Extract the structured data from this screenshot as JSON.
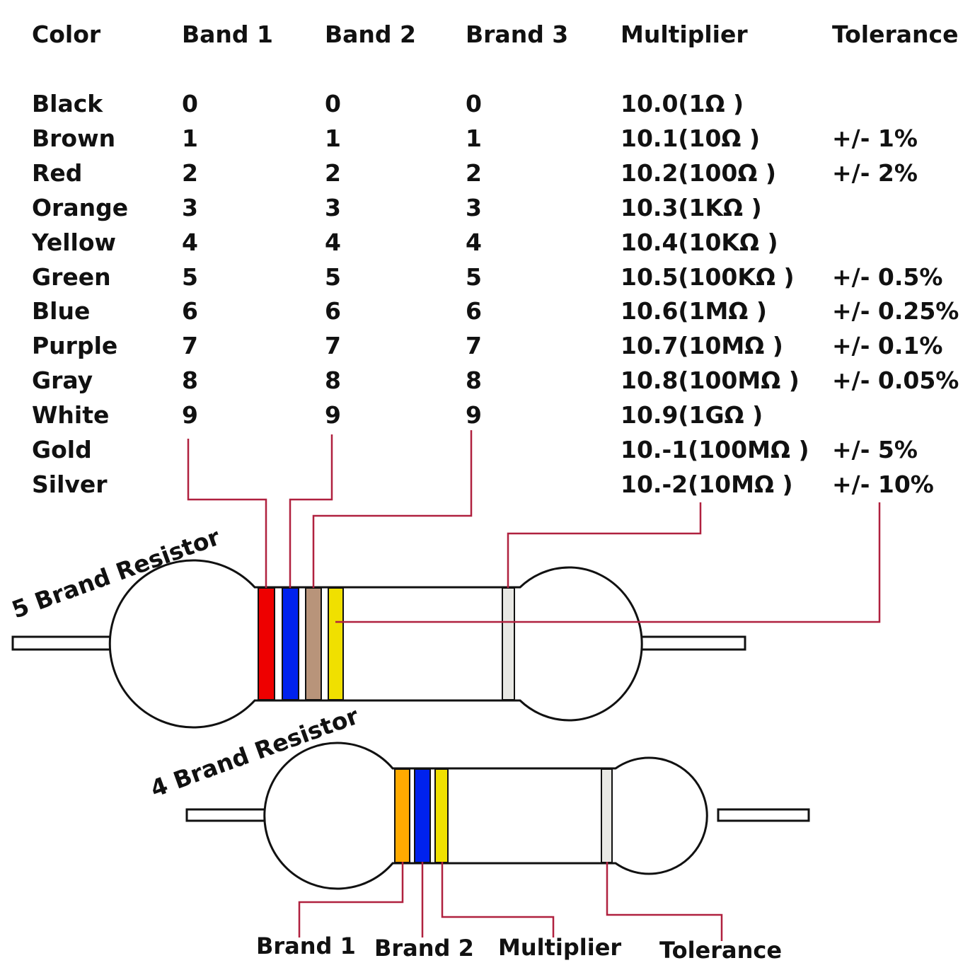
{
  "headers": [
    "Color",
    "Band 1",
    "Band 2",
    "Brand 3",
    "Multiplier",
    "Tolerance"
  ],
  "rows": [
    {
      "color": "Black",
      "band1": "0",
      "band2": "0",
      "band3": "0",
      "multiplier": "10.0(1Ω )",
      "tolerance": ""
    },
    {
      "color": "Brown",
      "band1": "1",
      "band2": "1",
      "band3": "1",
      "multiplier": "10.1(10Ω )",
      "tolerance": "+/- 1%"
    },
    {
      "color": "Red",
      "band1": "2",
      "band2": "2",
      "band3": "2",
      "multiplier": "10.2(100Ω )",
      "tolerance": "+/- 2%"
    },
    {
      "color": "Orange",
      "band1": "3",
      "band2": "3",
      "band3": "3",
      "multiplier": "10.3(1KΩ )",
      "tolerance": ""
    },
    {
      "color": "Yellow",
      "band1": "4",
      "band2": "4",
      "band3": "4",
      "multiplier": "10.4(10KΩ )",
      "tolerance": ""
    },
    {
      "color": "Green",
      "band1": "5",
      "band2": "5",
      "band3": "5",
      "multiplier": "10.5(100KΩ )",
      "tolerance": "+/- 0.5%"
    },
    {
      "color": "Blue",
      "band1": "6",
      "band2": "6",
      "band3": "6",
      "multiplier": "10.6(1MΩ )",
      "tolerance": "+/- 0.25%"
    },
    {
      "color": "Purple",
      "band1": "7",
      "band2": "7",
      "band3": "7",
      "multiplier": "10.7(10MΩ )",
      "tolerance": "+/- 0.1%"
    },
    {
      "color": "Gray",
      "band1": "8",
      "band2": "8",
      "band3": "8",
      "multiplier": "10.8(100MΩ )",
      "tolerance": "+/- 0.05%"
    },
    {
      "color": "White",
      "band1": "9",
      "band2": "9",
      "band3": "9",
      "multiplier": "10.9(1GΩ )",
      "tolerance": ""
    },
    {
      "color": "Gold",
      "band1": "",
      "band2": "",
      "band3": "",
      "multiplier": "10.-1(100MΩ )",
      "tolerance": "+/- 5%"
    },
    {
      "color": "Silver",
      "band1": "",
      "band2": "",
      "band3": "",
      "multiplier": "10.-2(10MΩ )",
      "tolerance": "+/- 10%"
    }
  ],
  "resistor5": {
    "label": "5 Brand Resistor",
    "band_colors": [
      "#ee0000",
      "#0022ee",
      "#b8947a",
      "#f0e000",
      "#e8e8e4"
    ]
  },
  "resistor4": {
    "label": "4 Brand Resistor",
    "band_colors": [
      "#ffaa00",
      "#0022ee",
      "#f0e000",
      "#e8e8e4"
    ]
  },
  "bottom_labels": {
    "brand1": "Brand 1",
    "brand2": "Brand 2",
    "multiplier": "Multiplier",
    "tolerance": "Tolerance"
  },
  "connector_color": "#b0213f"
}
